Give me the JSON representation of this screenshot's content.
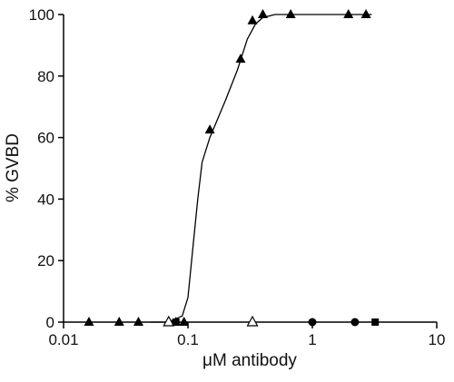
{
  "chart_data": {
    "type": "scatter",
    "xlabel": "μM antibody",
    "ylabel": "% GVBD",
    "xlog": true,
    "xlim": [
      0.01,
      10
    ],
    "xticks": [
      0.01,
      0.1,
      1,
      10
    ],
    "ylim": [
      0,
      100
    ],
    "yticks": [
      0,
      20,
      40,
      60,
      80,
      100
    ],
    "color": "#000000",
    "series": [
      {
        "marker": "filled-triangle",
        "x": [
          0.016,
          0.028,
          0.04,
          0.07,
          0.08,
          0.093,
          0.15,
          0.265,
          0.33,
          0.4,
          0.67,
          1.95,
          2.7
        ],
        "values": [
          0,
          0,
          0,
          0,
          0,
          0,
          62.5,
          85.5,
          98,
          100,
          100,
          100,
          100
        ]
      },
      {
        "marker": "open-triangle",
        "x": [
          0.07,
          0.33
        ],
        "values": [
          0,
          0
        ]
      },
      {
        "marker": "filled-circle",
        "x": [
          1,
          2.2
        ],
        "values": [
          0,
          0
        ]
      },
      {
        "marker": "filled-square",
        "x": [
          0.08,
          3.2
        ],
        "values": [
          0,
          0
        ]
      }
    ],
    "curve": {
      "x": [
        0.05,
        0.07,
        0.09,
        0.1,
        0.11,
        0.12,
        0.13,
        0.15,
        0.2,
        0.25,
        0.3,
        0.35,
        0.4,
        0.5,
        3
      ],
      "values": [
        0,
        0,
        2,
        8,
        25,
        40,
        52,
        60,
        72,
        82,
        92,
        97,
        99,
        100,
        100
      ]
    }
  }
}
